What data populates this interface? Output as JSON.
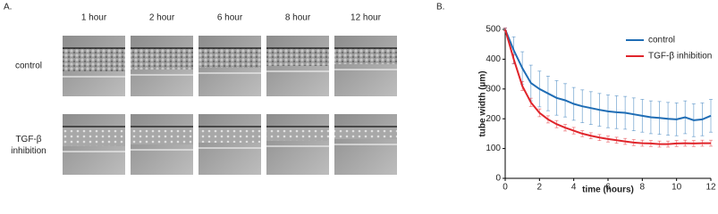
{
  "panel_a": {
    "label": "A.",
    "columns": [
      "1 hour",
      "2 hour",
      "6 hour",
      "8 hour",
      "12 hour"
    ],
    "rows": [
      "control",
      "TGF-β inhibition"
    ]
  },
  "chart_data": {
    "type": "line",
    "panel_label": "B.",
    "xlabel": "time (hours)",
    "ylabel": "tube width (µm)",
    "x": [
      0,
      0.5,
      1,
      1.5,
      2,
      2.5,
      3,
      3.5,
      4,
      4.5,
      5,
      5.5,
      6,
      6.5,
      7,
      7.5,
      8,
      8.5,
      9,
      9.5,
      10,
      10.5,
      11,
      11.5,
      12
    ],
    "series": [
      {
        "name": "control",
        "color": "#1f6db5",
        "values": [
          500,
          430,
          370,
          320,
          300,
          285,
          270,
          262,
          250,
          242,
          236,
          230,
          225,
          222,
          220,
          215,
          210,
          205,
          203,
          200,
          198,
          205,
          195,
          198,
          210
        ],
        "errors": [
          5,
          45,
          55,
          60,
          60,
          58,
          58,
          56,
          55,
          55,
          55,
          55,
          55,
          55,
          55,
          55,
          55,
          55,
          55,
          55,
          55,
          55,
          55,
          55,
          55
        ]
      },
      {
        "name": "TGF-β inhibition",
        "color": "#e0252b",
        "values": [
          500,
          400,
          310,
          255,
          220,
          198,
          182,
          170,
          160,
          150,
          143,
          137,
          132,
          128,
          124,
          120,
          118,
          117,
          115,
          115,
          117,
          118,
          117,
          118,
          118
        ],
        "errors": [
          5,
          15,
          15,
          14,
          13,
          12,
          12,
          11,
          11,
          10,
          10,
          10,
          10,
          10,
          10,
          10,
          10,
          10,
          10,
          10,
          10,
          10,
          10,
          10,
          10
        ]
      }
    ],
    "xlim": [
      0,
      12
    ],
    "xticks": [
      0,
      2,
      4,
      6,
      8,
      10,
      12
    ],
    "ylim": [
      0,
      500
    ],
    "yticks": [
      0,
      100,
      200,
      300,
      400,
      500
    ],
    "legend": "upper right"
  }
}
